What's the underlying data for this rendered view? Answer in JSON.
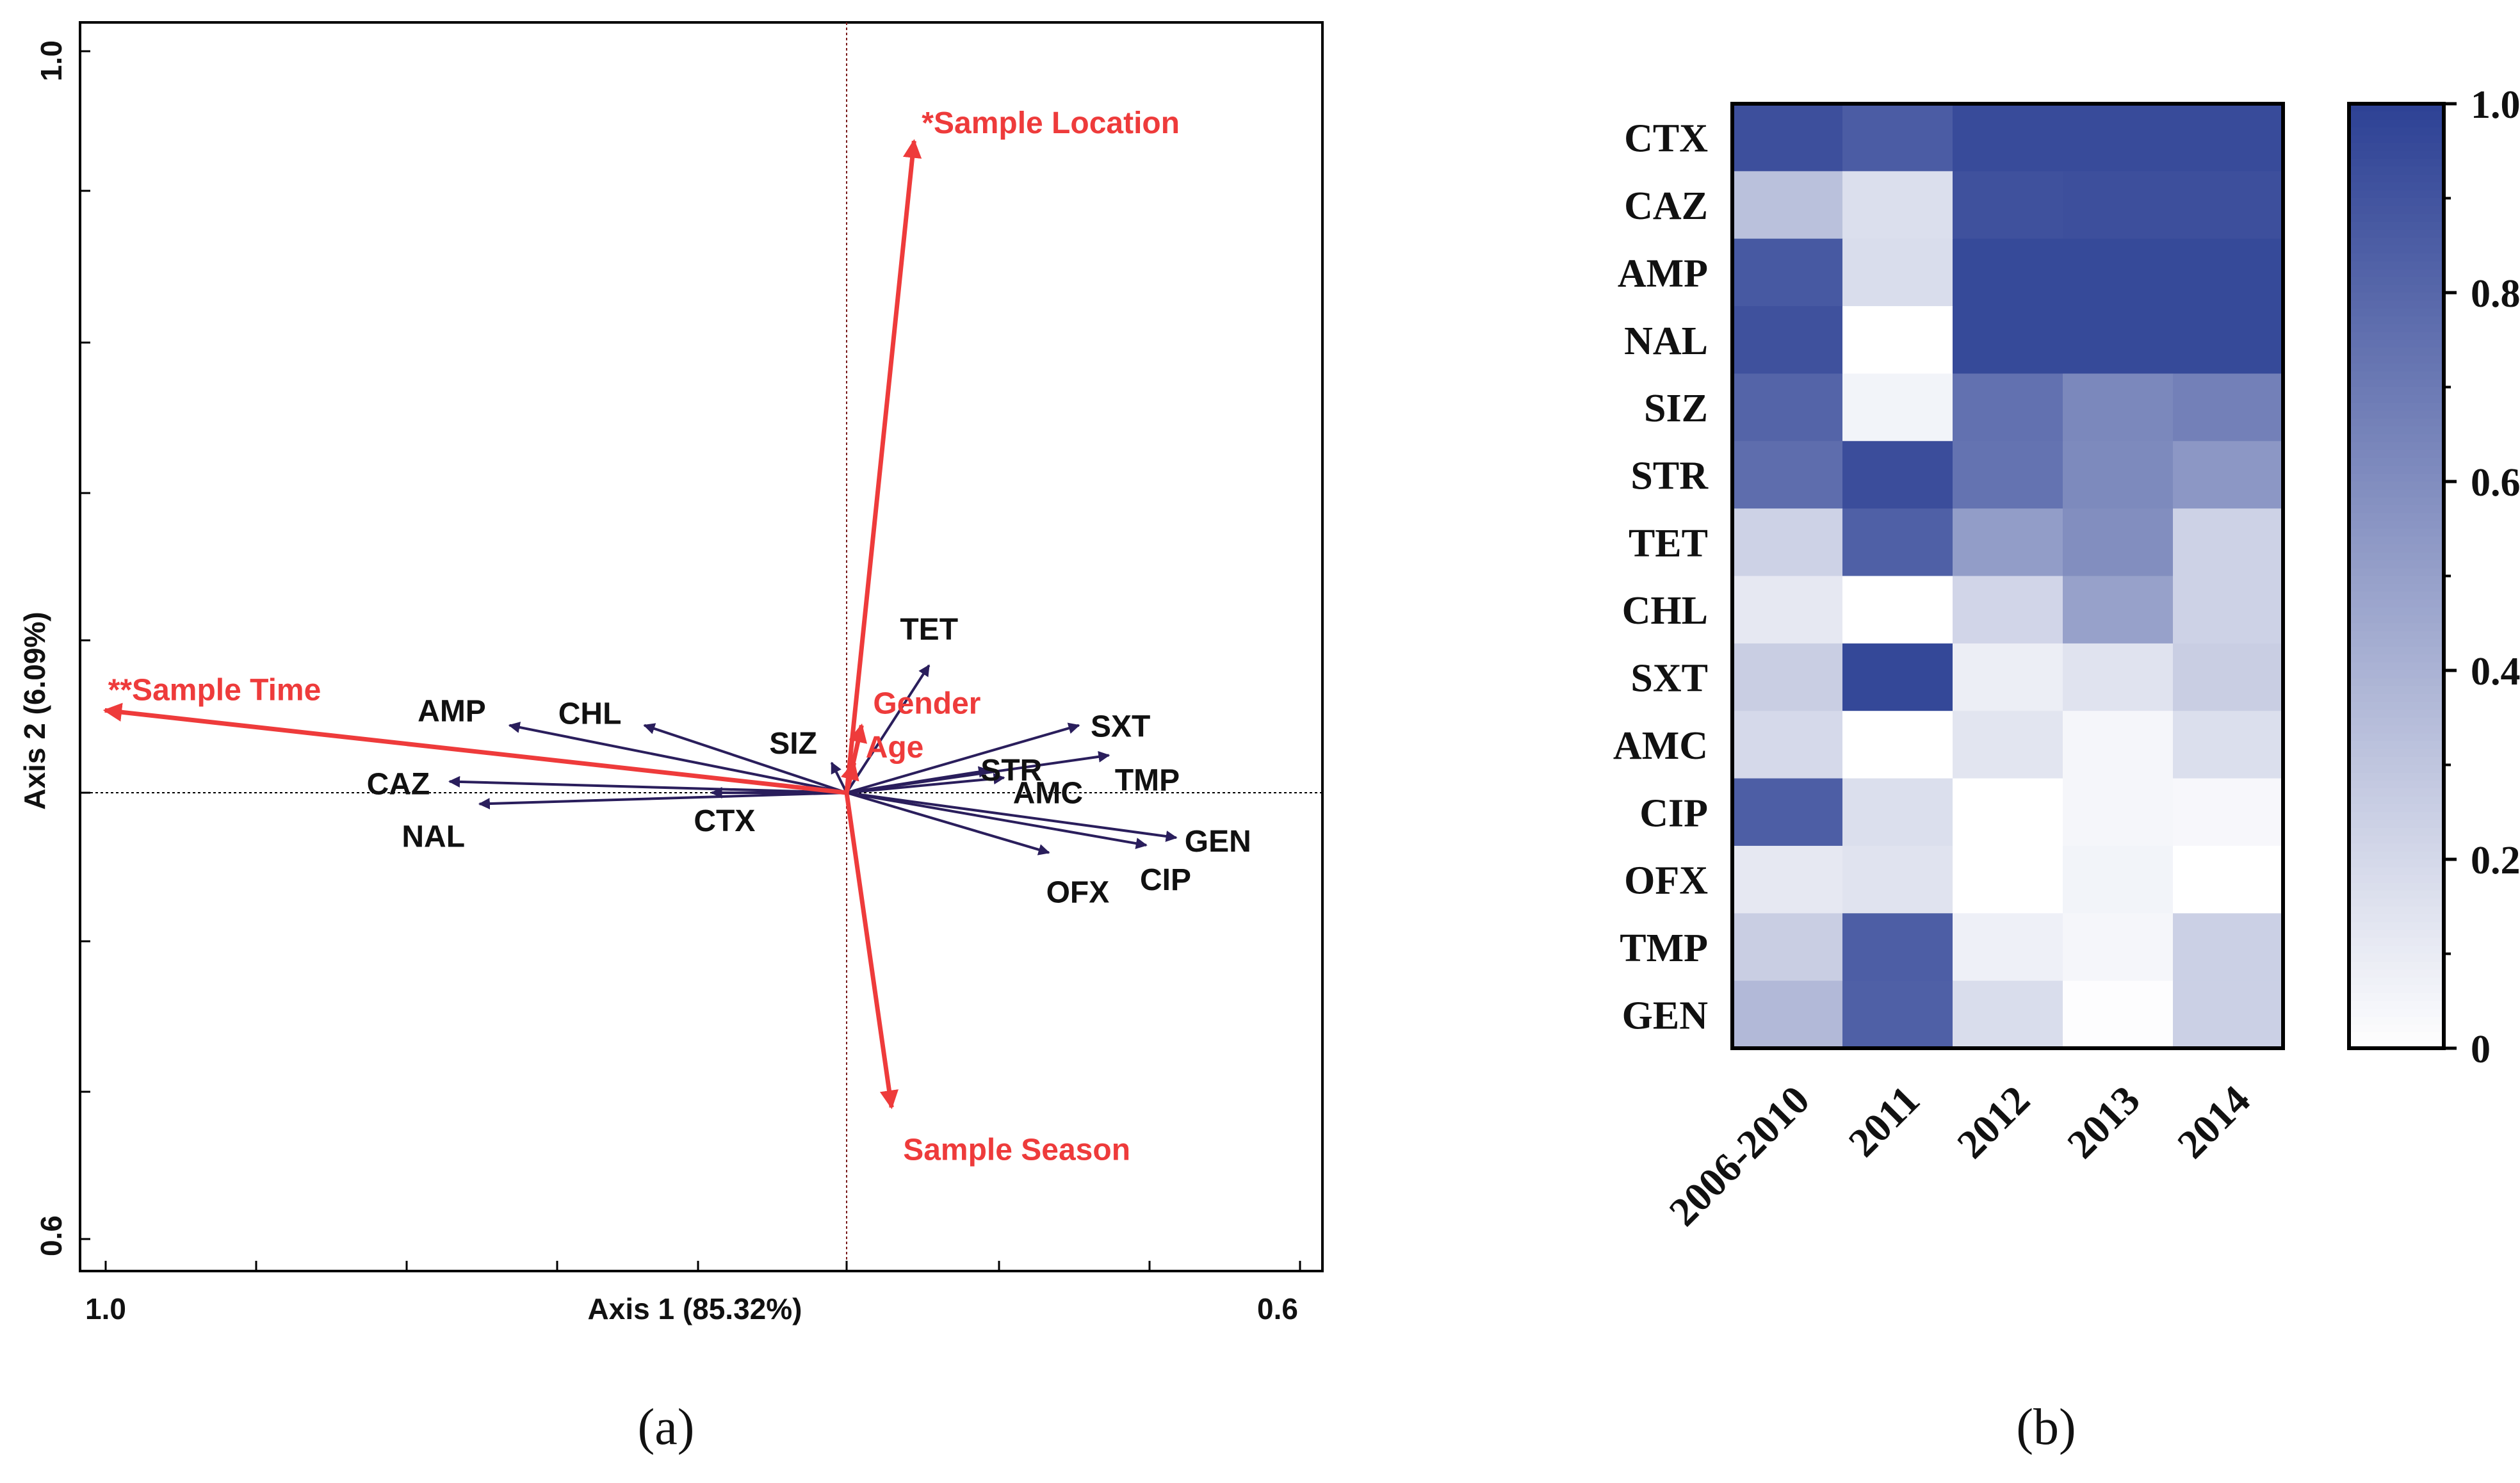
{
  "panel_a": {
    "label": "(a)",
    "chart_data": {
      "type": "scatter",
      "subtype": "biplot",
      "xlabel": "Axis 1 (85.32%)",
      "ylabel": "Axis 2 (6.09%)",
      "x_tick_labels": [
        "1.0",
        "0.6"
      ],
      "y_tick_labels": [
        "1.0",
        "0.6"
      ],
      "xlim": [
        -1.0,
        0.6
      ],
      "ylim": [
        -0.6,
        1.0
      ],
      "grid": false,
      "zero_lines": true,
      "series": [
        {
          "role": "response variables",
          "color": "#2a1e5c",
          "vectors": [
            {
              "label": "AMP",
              "x": -0.45,
              "y": 0.09
            },
            {
              "label": "CHL",
              "x": -0.27,
              "y": 0.09
            },
            {
              "label": "CAZ",
              "x": -0.53,
              "y": 0.015
            },
            {
              "label": "NAL",
              "x": -0.49,
              "y": -0.015
            },
            {
              "label": "CTX",
              "x": -0.18,
              "y": 0.0
            },
            {
              "label": "SIZ",
              "x": -0.02,
              "y": 0.04
            },
            {
              "label": "TET",
              "x": 0.11,
              "y": 0.17
            },
            {
              "label": "STR",
              "x": 0.19,
              "y": 0.03
            },
            {
              "label": "SXT",
              "x": 0.31,
              "y": 0.09
            },
            {
              "label": "AMC",
              "x": 0.21,
              "y": 0.02
            },
            {
              "label": "TMP",
              "x": 0.35,
              "y": 0.05
            },
            {
              "label": "GEN",
              "x": 0.44,
              "y": -0.06
            },
            {
              "label": "CIP",
              "x": 0.4,
              "y": -0.07
            },
            {
              "label": "OFX",
              "x": 0.27,
              "y": -0.08
            }
          ]
        },
        {
          "role": "explanatory variables",
          "color": "#ee3b3b",
          "vectors": [
            {
              "label": "*Sample Location",
              "x": 0.09,
              "y": 0.87
            },
            {
              "label": "**Sample Time",
              "x": -0.99,
              "y": 0.11
            },
            {
              "label": "Sample Season",
              "x": 0.06,
              "y": -0.42
            },
            {
              "label": "Gender",
              "x": 0.02,
              "y": 0.09
            },
            {
              "label": "Age",
              "x": 0.01,
              "y": 0.04
            }
          ]
        }
      ]
    }
  },
  "panel_b": {
    "label": "(b)",
    "chart_data": {
      "type": "heatmap",
      "rows": [
        "CTX",
        "CAZ",
        "AMP",
        "NAL",
        "SIZ",
        "STR",
        "TET",
        "CHL",
        "SXT",
        "AMC",
        "CIP",
        "OFX",
        "TMP",
        "GEN"
      ],
      "columns": [
        "2006-2010",
        "2011",
        "2012",
        "2013",
        "2014"
      ],
      "values": [
        [
          0.93,
          0.86,
          0.95,
          0.95,
          0.95
        ],
        [
          0.33,
          0.17,
          0.92,
          0.93,
          0.93
        ],
        [
          0.88,
          0.18,
          0.96,
          0.96,
          0.96
        ],
        [
          0.92,
          0.0,
          0.96,
          0.96,
          0.96
        ],
        [
          0.82,
          0.06,
          0.75,
          0.63,
          0.67
        ],
        [
          0.77,
          0.94,
          0.74,
          0.62,
          0.55
        ],
        [
          0.24,
          0.84,
          0.52,
          0.6,
          0.24
        ],
        [
          0.12,
          0.0,
          0.22,
          0.5,
          0.24
        ],
        [
          0.26,
          0.97,
          0.09,
          0.15,
          0.26
        ],
        [
          0.2,
          0.0,
          0.14,
          0.05,
          0.17
        ],
        [
          0.85,
          0.17,
          0.0,
          0.05,
          0.04
        ],
        [
          0.12,
          0.15,
          0.0,
          0.06,
          0.0
        ],
        [
          0.26,
          0.85,
          0.08,
          0.05,
          0.25
        ],
        [
          0.37,
          0.84,
          0.18,
          0.01,
          0.25
        ]
      ],
      "colorbar": {
        "min": 0,
        "max": 1,
        "ticks": [
          "0",
          "0.2",
          "0.4",
          "0.6",
          "0.8",
          "1.0"
        ],
        "low_color": "#ffffff",
        "high_color": "#2e4295"
      }
    }
  }
}
